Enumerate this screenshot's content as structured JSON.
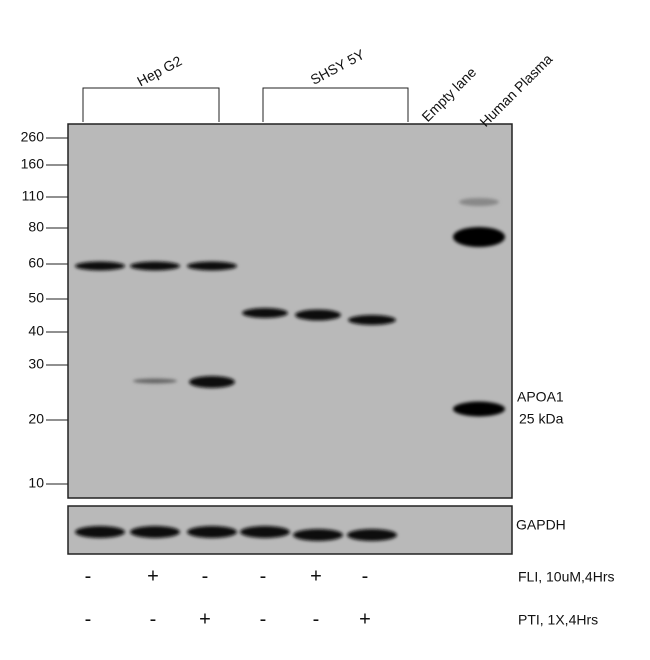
{
  "groups": [
    {
      "label": "Hep G2"
    },
    {
      "label": "SHSY 5Y"
    }
  ],
  "lane_labels": [
    "Empty lane",
    "Human Plasma"
  ],
  "markers": [
    260,
    160,
    110,
    80,
    60,
    50,
    40,
    30,
    20,
    10
  ],
  "annotations": {
    "main": [
      "APOA1",
      "25 kDa"
    ],
    "loading": "GAPDH"
  },
  "treatments": [
    {
      "name": "FLI, 10uM,4Hrs",
      "signs": [
        "-",
        "+",
        "-",
        "-",
        "+",
        "-"
      ]
    },
    {
      "name": "PTI, 1X,4Hrs",
      "signs": [
        "-",
        "-",
        "+",
        "-",
        "-",
        "+"
      ]
    }
  ]
}
